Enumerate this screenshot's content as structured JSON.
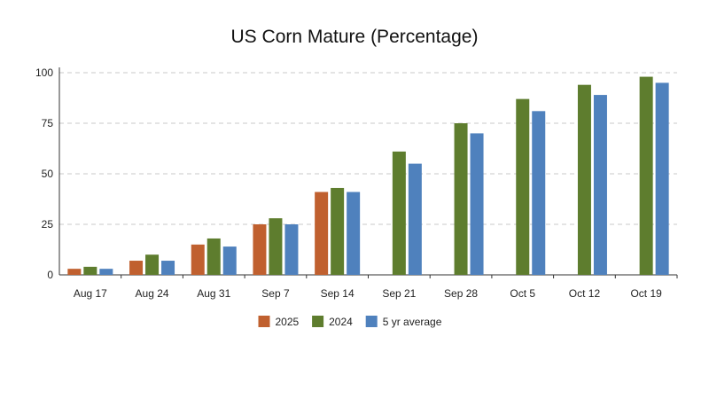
{
  "chart_data": {
    "type": "bar",
    "title": "US Corn Mature (Percentage)",
    "xlabel": "",
    "ylabel": "",
    "ylim": [
      0,
      100
    ],
    "yticks": [
      0,
      25,
      50,
      75,
      100
    ],
    "grid": true,
    "legend_position": "bottom",
    "categories": [
      "Aug 17",
      "Aug 24",
      "Aug 31",
      "Sep 7",
      "Sep 14",
      "Sep 21",
      "Sep 28",
      "Oct 5",
      "Oct 12",
      "Oct 19"
    ],
    "series": [
      {
        "name": "2025",
        "color": "#c0602f",
        "values": [
          3,
          7,
          15,
          25,
          41,
          null,
          null,
          null,
          null,
          null
        ]
      },
      {
        "name": "2024",
        "color": "#5e7d2e",
        "values": [
          4,
          10,
          18,
          28,
          43,
          61,
          75,
          87,
          94,
          98
        ]
      },
      {
        "name": "5 yr average",
        "color": "#4f81bd",
        "values": [
          3,
          7,
          14,
          25,
          41,
          55,
          70,
          81,
          89,
          95
        ]
      }
    ]
  }
}
